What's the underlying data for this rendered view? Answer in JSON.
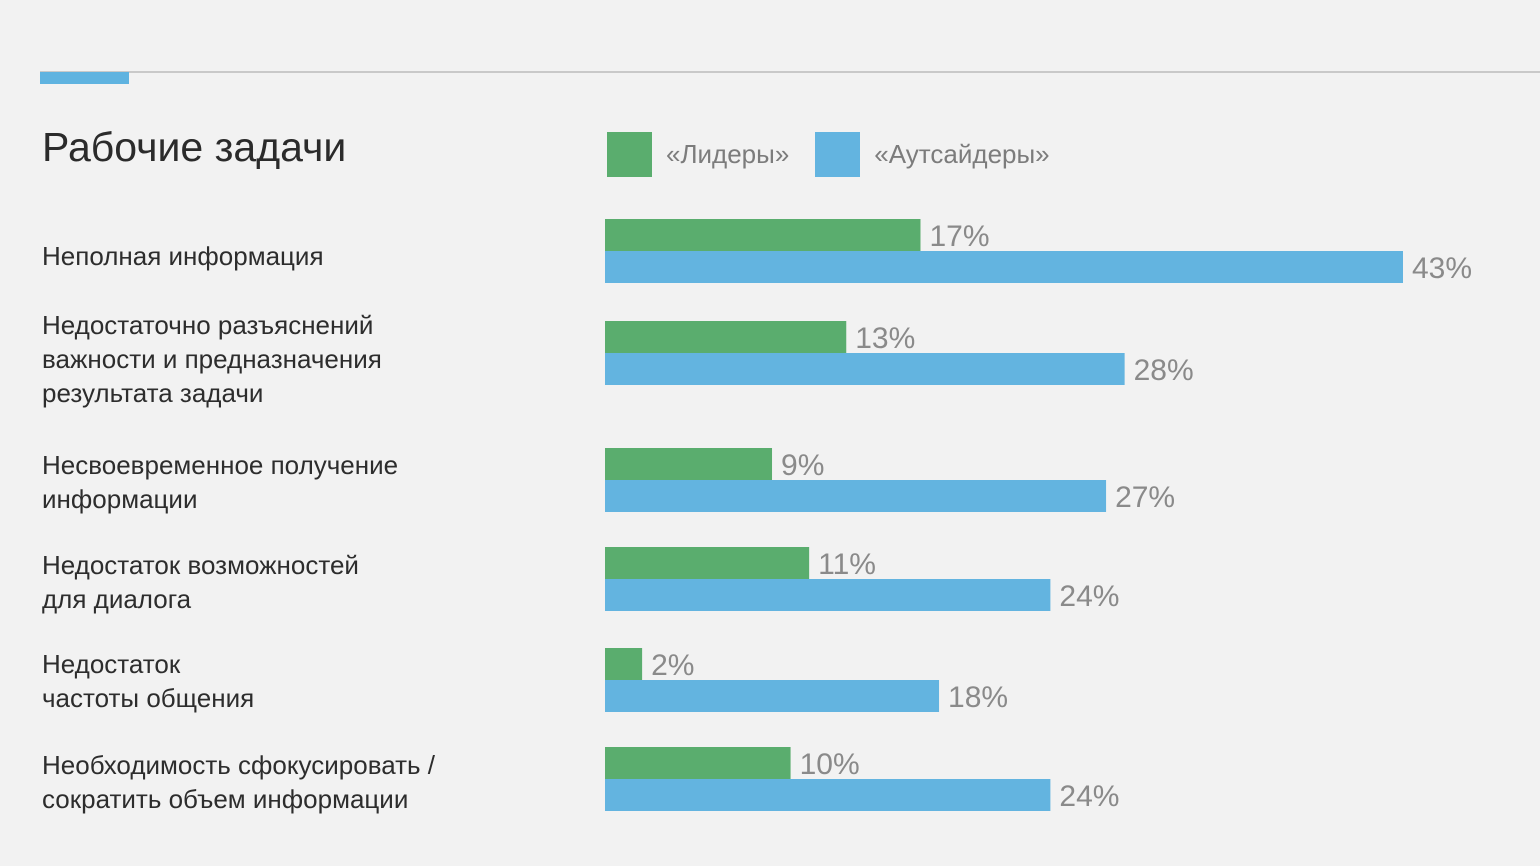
{
  "title": "Рабочие задачи",
  "legend": [
    {
      "label": "«Лидеры»",
      "color": "#5aad6e"
    },
    {
      "label": "«Аутсайдеры»",
      "color": "#63b4e0"
    }
  ],
  "chart_data": {
    "type": "bar",
    "orientation": "horizontal",
    "title": "Рабочие задачи",
    "categories": [
      "Неполная информация",
      "Недостаточно разъяснений\nважности и предназначения\nрезультата задачи",
      "Несвоевременное получение\nинформации",
      "Недостаток возможностей\nдля диалога",
      "Недостаток\nчастоты общения",
      "Необходимость сфокусировать /\nсократить объем информации"
    ],
    "series": [
      {
        "name": "«Лидеры»",
        "color": "#5aad6e",
        "values": [
          17,
          13,
          9,
          11,
          2,
          10
        ],
        "labels": [
          "17%",
          "13%",
          "9%",
          "11%",
          "2%",
          "10%"
        ]
      },
      {
        "name": "«Аутсайдеры»",
        "color": "#63b4e0",
        "values": [
          43,
          28,
          27,
          24,
          18,
          24
        ],
        "labels": [
          "43%",
          "28%",
          "27%",
          "24%",
          "18%",
          "24%"
        ]
      }
    ],
    "unit": "%",
    "xlim": [
      0,
      43
    ],
    "grid": false,
    "legend_position": "top"
  }
}
